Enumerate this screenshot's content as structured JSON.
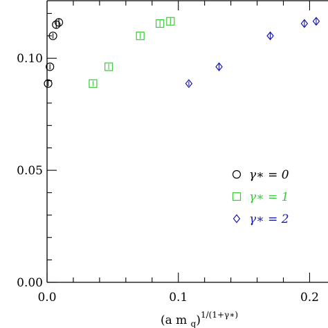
{
  "chart_data": {
    "type": "scatter",
    "xlabel": "(a m",
    "xlabel_sub": "q",
    "xlabel_sup": "1/(1+γ∗)",
    "ylabel": "",
    "xlim": [
      0.0,
      0.205
    ],
    "ylim": [
      0.0,
      0.126
    ],
    "x_ticks": [
      {
        "value": 0.0,
        "label": "0.0"
      },
      {
        "value": 0.1,
        "label": "0.1"
      },
      {
        "value": 0.2,
        "label": "0.2"
      }
    ],
    "y_ticks": [
      {
        "value": 0.0,
        "label": "0.00"
      },
      {
        "value": 0.05,
        "label": "0.05"
      },
      {
        "value": 0.1,
        "label": "0.10"
      }
    ],
    "grid": false,
    "legend_position": "bottom-right",
    "series": [
      {
        "name": "γ∗ = 0",
        "color": "#000000",
        "marker": "circle",
        "points": [
          {
            "x": 0.0008,
            "y": 0.0887,
            "err": 0.0012
          },
          {
            "x": 0.0022,
            "y": 0.0962,
            "err": 0.0012
          },
          {
            "x": 0.0045,
            "y": 0.11,
            "err": 0.0012
          },
          {
            "x": 0.007,
            "y": 0.115,
            "err": 0.0015
          },
          {
            "x": 0.009,
            "y": 0.116,
            "err": 0.0015
          }
        ]
      },
      {
        "name": "γ∗ = 1",
        "color": "#33cc33",
        "marker": "square",
        "points": [
          {
            "x": 0.035,
            "y": 0.0887,
            "err": 0.0012
          },
          {
            "x": 0.047,
            "y": 0.0962,
            "err": 0.0013
          },
          {
            "x": 0.071,
            "y": 0.11,
            "err": 0.0013
          },
          {
            "x": 0.086,
            "y": 0.1155,
            "err": 0.0015
          },
          {
            "x": 0.094,
            "y": 0.1165,
            "err": 0.0015
          }
        ]
      },
      {
        "name": "γ∗ = 2",
        "color": "#1a1aaa",
        "marker": "diamond",
        "points": [
          {
            "x": 0.108,
            "y": 0.0887,
            "err": 0.001
          },
          {
            "x": 0.131,
            "y": 0.0962,
            "err": 0.0015
          },
          {
            "x": 0.17,
            "y": 0.11,
            "err": 0.0016
          },
          {
            "x": 0.196,
            "y": 0.1155,
            "err": 0.0016
          },
          {
            "x": 0.205,
            "y": 0.1165,
            "err": 0.0016
          }
        ]
      }
    ]
  }
}
